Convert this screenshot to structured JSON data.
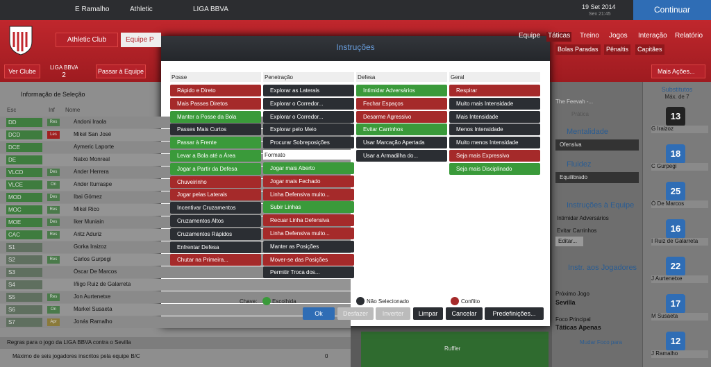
{
  "top_bar": {
    "items": [
      "E Ramalho",
      "Athletic",
      "LIGA BBVA"
    ],
    "date": "19 Set 2014",
    "time": "Sex 21:45",
    "continue": "Continuar"
  },
  "club_bar": {
    "club": "Athletic Club",
    "tab": "Equipe P",
    "nav": [
      "Equipe",
      "Táticas",
      "Treino",
      "Jogos",
      "Interação",
      "Relatório"
    ],
    "subnav": [
      "Bolas Paradas",
      "Pênaltis",
      "Capitães"
    ]
  },
  "sub_bar": {
    "view_club": "Ver Clube",
    "league": "LIGA BBVA",
    "position": "2",
    "go_team": "Passar à Equipe",
    "more": "Mais Ações..."
  },
  "selection": {
    "title": "Informação de Seleção",
    "headers": [
      "Esc",
      "Inf",
      "Nome"
    ],
    "players": [
      {
        "pos": "DD",
        "info": "Res",
        "name": "Andoni Iraola"
      },
      {
        "pos": "DCD",
        "info": "Les",
        "name": "Mikel San José"
      },
      {
        "pos": "DCE",
        "info": null,
        "name": "Aymeric Laporte"
      },
      {
        "pos": "DE",
        "info": null,
        "name": "Natxo Monreal"
      },
      {
        "pos": "VLCD",
        "info": "Des",
        "name": "Ander Herrera"
      },
      {
        "pos": "VLCE",
        "info": "On",
        "name": "Ander Iturraspe"
      },
      {
        "pos": "MOD",
        "info": "Des",
        "name": "Ibai Gómez"
      },
      {
        "pos": "MOC",
        "info": "Res",
        "name": "Mikel Rico"
      },
      {
        "pos": "MOE",
        "info": "Des",
        "name": "Iker Muniain"
      },
      {
        "pos": "CAC",
        "info": "Res",
        "name": "Aritz Aduriz"
      },
      {
        "pos": "S1",
        "info": null,
        "name": "Gorka Iraizoz"
      },
      {
        "pos": "S2",
        "info": "Res",
        "name": "Carlos Gurpegi"
      },
      {
        "pos": "S3",
        "info": null,
        "name": "Óscar De Marcos"
      },
      {
        "pos": "S4",
        "info": null,
        "name": "Iñigo Ruiz de Galarreta"
      },
      {
        "pos": "S5",
        "info": "Res",
        "name": "Jon Aurtenetxe"
      },
      {
        "pos": "S6",
        "info": "On",
        "name": "Markel Susaeta"
      },
      {
        "pos": "S7",
        "info": "Apr",
        "name": "Jonás Ramalho"
      }
    ],
    "rules": "Regras para o jogo da LIGA BBVA contra o Sevilla",
    "rule_text": "Máximo de seis jogadores inscritos pela equipe B/C",
    "rule_value": "0"
  },
  "tactics_panel": {
    "tactic": "The Feevah -...",
    "mode": "Prática",
    "mentality_label": "Mentalidade",
    "mentality": "Ofensiva",
    "fluidity_label": "Fluidez",
    "fluidity": "Equilibrado",
    "team_instr_label": "Instruções à Equipe",
    "team_instr": [
      "Intimidar Adversários",
      "Evitar Carrinhos"
    ],
    "edit": "Editar...",
    "player_instr": "Instr. aos Jogadores",
    "next_match_label": "Próximo Jogo",
    "next_match": "Sevilla",
    "focus_label": "Foco Principal",
    "focus": "Táticas Apenas",
    "change_focus": "Mudar Foco para",
    "pitch_player": "Ruffler"
  },
  "subs": {
    "title": "Substitutos",
    "max": "Máx. de 7",
    "players": [
      {
        "number": "13",
        "name": "G Iraizoz"
      },
      {
        "number": "18",
        "name": "C Gurpegi"
      },
      {
        "number": "25",
        "name": "Ó De Marcos"
      },
      {
        "number": "16",
        "name": "I Ruiz de Galarreta"
      },
      {
        "number": "22",
        "name": "J Aurtenetxe"
      },
      {
        "number": "17",
        "name": "M Susaeta"
      },
      {
        "number": "12",
        "name": "J Ramalho"
      }
    ]
  },
  "modal": {
    "title": "Instruções",
    "columns": [
      {
        "groups": [
          {
            "title": "Posse",
            "items": [
              {
                "label": "Rápido e Direto",
                "color": "#a52a2a"
              },
              {
                "label": "Mais Passes Diretos",
                "color": "#a52a2a"
              },
              {
                "label": "Manter a Posse da Bola",
                "color": "#3a9a3a"
              },
              {
                "label": "Passes Mais Curtos",
                "color": "#2b2e33"
              },
              {
                "label": "Passar à Frente",
                "color": "#3a9a3a"
              },
              {
                "label": "Levar a Bola até a Área",
                "color": "#3a9a3a"
              },
              {
                "label": "Jogar a Partir da Defesa",
                "color": "#3a9a3a"
              },
              {
                "label": "Chuveirinho",
                "color": "#a52a2a"
              },
              {
                "label": "Jogar pelas Laterais",
                "color": "#a52a2a"
              },
              {
                "label": "Incentivar Cruzamentos",
                "color": "#2b2e33"
              },
              {
                "label": "Cruzamentos Altos",
                "color": "#2b2e33"
              },
              {
                "label": "Cruzamentos Rápidos",
                "color": "#2b2e33"
              },
              {
                "label": "Enfrentar Defesa",
                "color": "#2b2e33"
              },
              {
                "label": "Chutar na Primeira...",
                "color": "#a52a2a"
              }
            ]
          }
        ]
      },
      {
        "groups": [
          {
            "title": "Penetração",
            "items": [
              {
                "label": "Explorar as Laterais",
                "color": "#2b2e33"
              },
              {
                "label": "Explorar o Corredor...",
                "color": "#2b2e33"
              },
              {
                "label": "Explorar o Corredor...",
                "color": "#2b2e33"
              },
              {
                "label": "Explorar pelo Meio",
                "color": "#2b2e33"
              },
              {
                "label": "Procurar Sobreposições",
                "color": "#2b2e33"
              }
            ]
          },
          {
            "title": "Formato",
            "items": [
              {
                "label": "Jogar mais Aberto",
                "color": "#3a9a3a"
              },
              {
                "label": "Jogar mais Fechado",
                "color": "#a52a2a"
              },
              {
                "label": "Linha Defensiva muito...",
                "color": "#a52a2a"
              },
              {
                "label": "Subir Linhas",
                "color": "#3a9a3a"
              },
              {
                "label": "Recuar Linha Defensiva",
                "color": "#a52a2a"
              },
              {
                "label": "Linha Defensiva muito...",
                "color": "#a52a2a"
              },
              {
                "label": "Manter as Posições",
                "color": "#2b2e33"
              },
              {
                "label": "Mover-se das Posições",
                "color": "#a52a2a"
              },
              {
                "label": "Permitir Troca dos...",
                "color": "#2b2e33"
              }
            ]
          }
        ]
      },
      {
        "groups": [
          {
            "title": "Defesa",
            "items": [
              {
                "label": "Intimidar Adversários",
                "color": "#3a9a3a"
              },
              {
                "label": "Fechar Espaços",
                "color": "#a52a2a"
              },
              {
                "label": "Desarme Agressivo",
                "color": "#a52a2a"
              },
              {
                "label": "Evitar Carrinhos",
                "color": "#3a9a3a"
              },
              {
                "label": "Usar Marcação Apertada",
                "color": "#2b2e33"
              },
              {
                "label": "Usar a Armadilha do...",
                "color": "#2b2e33"
              }
            ]
          }
        ]
      },
      {
        "groups": [
          {
            "title": "Geral",
            "items": [
              {
                "label": "Respirar",
                "color": "#a52a2a"
              },
              {
                "label": "Muito mais Intensidade",
                "color": "#2b2e33"
              },
              {
                "label": "Mais Intensidade",
                "color": "#2b2e33"
              },
              {
                "label": "Menos Intensidade",
                "color": "#2b2e33"
              },
              {
                "label": "Muito menos Intensidade",
                "color": "#2b2e33"
              },
              {
                "label": "Seja mais Expressivo",
                "color": "#a52a2a"
              },
              {
                "label": "Seja mais Disciplinado",
                "color": "#3a9a3a"
              }
            ]
          }
        ]
      }
    ],
    "key_label": "Chave:",
    "key": [
      {
        "label": "Escolhida",
        "color": "#3a9a3a"
      },
      {
        "label": "Não Selecionado",
        "color": "#2b2e33"
      },
      {
        "label": "Conflito",
        "color": "#a52a2a"
      }
    ],
    "buttons": [
      "Ok",
      "Desfazer",
      "Inverter",
      "Limpar",
      "Cancelar",
      "Predefinições..."
    ]
  }
}
